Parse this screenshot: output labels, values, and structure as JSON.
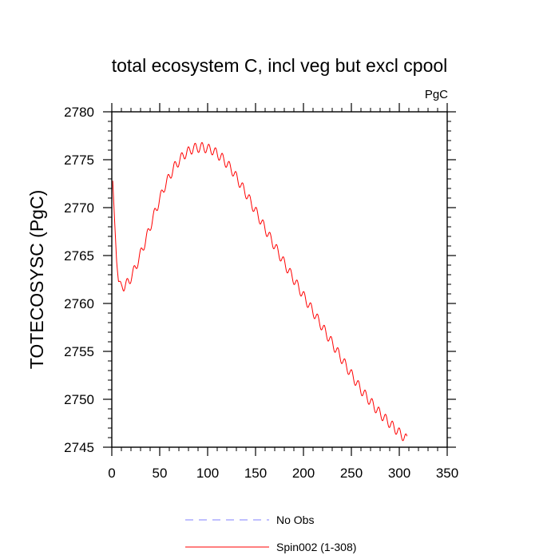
{
  "chart_data": {
    "type": "line",
    "title": "total ecosystem C, incl veg but excl cpool",
    "units_label": "PgC",
    "ylabel": "TOTECOSYSC  (PgC)",
    "xlabel": "",
    "xlim": [
      0,
      350
    ],
    "ylim": [
      2745,
      2780
    ],
    "x_ticks": [
      0,
      50,
      100,
      150,
      200,
      250,
      300,
      350
    ],
    "x_tick_labels": [
      "0",
      "50",
      "100",
      "150",
      "200",
      "250",
      "300",
      "350"
    ],
    "y_ticks": [
      2745,
      2750,
      2755,
      2760,
      2765,
      2770,
      2775,
      2780
    ],
    "y_tick_labels": [
      "2745",
      "2750",
      "2755",
      "2760",
      "2765",
      "2770",
      "2775",
      "2780"
    ],
    "grid": false,
    "legend_position": "bottom-center",
    "legend": [
      {
        "name": "No Obs",
        "color": "#8080ff",
        "style": "dashed"
      },
      {
        "name": "Spin002 (1-308)",
        "color": "#ff0000",
        "style": "solid"
      }
    ],
    "series": [
      {
        "name": "Spin002 (1-308)",
        "color": "#ff0000",
        "seasonal_amplitude": 0.5,
        "trend": {
          "x": [
            1,
            3,
            5,
            7,
            10,
            13,
            18,
            25,
            35,
            45,
            55,
            65,
            75,
            85,
            95,
            105,
            115,
            125,
            140,
            160,
            180,
            200,
            220,
            240,
            260,
            280,
            300,
            308
          ],
          "y": [
            2772.8,
            2768.5,
            2764.5,
            2762.3,
            2761.8,
            2761.8,
            2762.3,
            2763.8,
            2766.5,
            2769.5,
            2772.2,
            2774.2,
            2775.5,
            2776.2,
            2776.3,
            2776.0,
            2775.2,
            2774.0,
            2771.5,
            2767.8,
            2764.2,
            2760.8,
            2757.5,
            2754.2,
            2751.0,
            2748.5,
            2746.5,
            2745.8
          ]
        }
      }
    ]
  }
}
